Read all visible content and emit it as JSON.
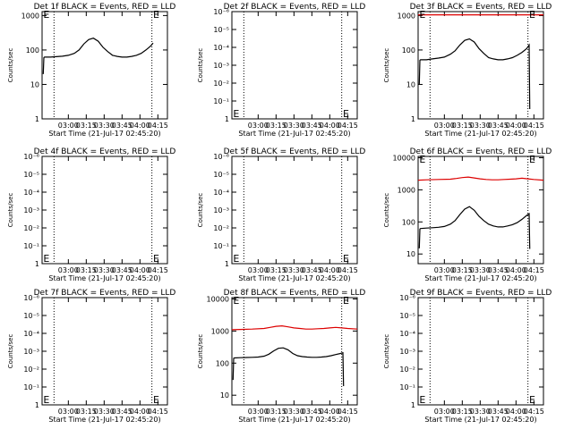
{
  "x_tick_labels": [
    "03:00",
    "03:15",
    "03:30",
    "03:45",
    "04:00",
    "04:15"
  ],
  "x_axis_label": "Start Time (21-Jul-17 02:45:20)",
  "y_axis_label": "Counts/sec",
  "colors": {
    "events": "#000000",
    "lld": "#dd0000"
  },
  "chart_data": [
    {
      "type": "line",
      "title": "Det 1f BLACK = Events, RED = LLD",
      "yscale": "log",
      "y_ticks": [
        1,
        10,
        100,
        1000
      ],
      "ylim": [
        1,
        1300
      ],
      "xlim_minutes": [
        -7,
        98
      ],
      "vlines_minutes": [
        3,
        85
      ],
      "e_markers": [
        {
          "x": -6,
          "y": 1100
        },
        {
          "x": 86,
          "y": 1100
        }
      ],
      "series": [
        {
          "color": "events",
          "x": [
            -6,
            -5.5,
            -5,
            0,
            5,
            10,
            15,
            20,
            24,
            28,
            32,
            36,
            40,
            44,
            48,
            52,
            56,
            60,
            64,
            68,
            72,
            76,
            80,
            84,
            86
          ],
          "y": [
            20,
            60,
            62,
            62,
            64,
            66,
            70,
            80,
            100,
            150,
            200,
            220,
            180,
            120,
            90,
            70,
            65,
            62,
            62,
            65,
            70,
            80,
            100,
            130,
            160
          ]
        }
      ]
    },
    {
      "type": "line",
      "title": "Det 2f BLACK = Events, RED = LLD",
      "yscale": "log",
      "y_ticks": [
        1,
        0.1,
        0.01,
        0.001,
        0.0001,
        1e-05,
        1e-06
      ],
      "ylim": [
        1,
        1e-06
      ],
      "xlim_minutes": [
        -7,
        98
      ],
      "vlines_minutes": [
        3,
        85
      ],
      "e_markers": [
        {
          "x": -6,
          "y": 0.5
        },
        {
          "x": 86,
          "y": 0.5
        }
      ],
      "series": []
    },
    {
      "type": "line",
      "title": "Det 3f BLACK = Events, RED = LLD",
      "yscale": "log",
      "y_ticks": [
        1,
        10,
        100,
        1000
      ],
      "ylim": [
        1,
        1300
      ],
      "xlim_minutes": [
        -7,
        98
      ],
      "vlines_minutes": [
        3,
        85
      ],
      "e_markers": [
        {
          "x": -6,
          "y": 1100
        },
        {
          "x": 86,
          "y": 1100
        }
      ],
      "series": [
        {
          "color": "lld",
          "x": [
            -7,
            98
          ],
          "y": [
            1050,
            1050
          ]
        },
        {
          "color": "events",
          "x": [
            -6,
            -5.5,
            -5,
            0,
            5,
            10,
            15,
            20,
            24,
            28,
            32,
            36,
            40,
            44,
            48,
            52,
            56,
            60,
            64,
            68,
            72,
            76,
            80,
            84,
            86,
            86.5,
            87
          ],
          "y": [
            10,
            50,
            52,
            52,
            55,
            58,
            62,
            75,
            95,
            140,
            190,
            210,
            170,
            110,
            80,
            60,
            55,
            52,
            52,
            55,
            60,
            70,
            85,
            110,
            140,
            2,
            2
          ]
        }
      ]
    },
    {
      "type": "line",
      "title": "Det 4f BLACK = Events, RED = LLD",
      "yscale": "log",
      "y_ticks": [
        1,
        0.1,
        0.01,
        0.001,
        0.0001,
        1e-05,
        1e-06
      ],
      "ylim": [
        1,
        1e-06
      ],
      "xlim_minutes": [
        -7,
        98
      ],
      "vlines_minutes": [
        3,
        85
      ],
      "e_markers": [
        {
          "x": -6,
          "y": 0.5
        },
        {
          "x": 86,
          "y": 0.5
        }
      ],
      "series": []
    },
    {
      "type": "line",
      "title": "Det 5f BLACK = Events, RED = LLD",
      "yscale": "log",
      "y_ticks": [
        1,
        0.1,
        0.01,
        0.001,
        0.0001,
        1e-05,
        1e-06
      ],
      "ylim": [
        1,
        1e-06
      ],
      "xlim_minutes": [
        -7,
        98
      ],
      "vlines_minutes": [
        3,
        85
      ],
      "e_markers": [
        {
          "x": -6,
          "y": 0.5
        },
        {
          "x": 86,
          "y": 0.5
        }
      ],
      "series": []
    },
    {
      "type": "line",
      "title": "Det 6f BLACK = Events, RED = LLD",
      "yscale": "log",
      "y_ticks": [
        10,
        100,
        1000,
        10000
      ],
      "ylim": [
        5,
        11000
      ],
      "xlim_minutes": [
        -7,
        98
      ],
      "vlines_minutes": [
        3,
        85
      ],
      "e_markers": [
        {
          "x": -6,
          "y": 9000
        },
        {
          "x": 86,
          "y": 9000
        }
      ],
      "series": [
        {
          "color": "lld",
          "x": [
            -7,
            0,
            10,
            20,
            25,
            30,
            35,
            40,
            45,
            50,
            55,
            60,
            65,
            70,
            75,
            80,
            85,
            90,
            98
          ],
          "y": [
            2000,
            2050,
            2100,
            2150,
            2250,
            2400,
            2500,
            2350,
            2200,
            2100,
            2050,
            2050,
            2100,
            2150,
            2200,
            2300,
            2200,
            2100,
            2000
          ]
        },
        {
          "color": "events",
          "x": [
            -6,
            -5.5,
            -5,
            0,
            5,
            10,
            15,
            20,
            24,
            28,
            32,
            36,
            40,
            44,
            48,
            52,
            56,
            60,
            64,
            68,
            72,
            76,
            80,
            84,
            86,
            86.5,
            87
          ],
          "y": [
            15,
            60,
            62,
            64,
            66,
            68,
            72,
            85,
            110,
            170,
            250,
            300,
            230,
            150,
            110,
            85,
            75,
            70,
            70,
            75,
            82,
            95,
            120,
            160,
            180,
            15,
            15
          ]
        }
      ]
    },
    {
      "type": "line",
      "title": "Det 7f BLACK = Events, RED = LLD",
      "yscale": "log",
      "y_ticks": [
        1,
        0.1,
        0.01,
        0.001,
        0.0001,
        1e-05,
        1e-06
      ],
      "ylim": [
        1,
        1e-06
      ],
      "xlim_minutes": [
        -7,
        98
      ],
      "vlines_minutes": [
        3,
        85
      ],
      "e_markers": [
        {
          "x": -6,
          "y": 0.5
        },
        {
          "x": 86,
          "y": 0.5
        }
      ],
      "series": []
    },
    {
      "type": "line",
      "title": "Det 8f BLACK = Events, RED = LLD",
      "yscale": "log",
      "y_ticks": [
        10,
        100,
        1000,
        10000
      ],
      "ylim": [
        5,
        11000
      ],
      "xlim_minutes": [
        -7,
        98
      ],
      "vlines_minutes": [
        3,
        85
      ],
      "e_markers": [
        {
          "x": -6,
          "y": 9000
        },
        {
          "x": 86,
          "y": 9000
        }
      ],
      "series": [
        {
          "color": "lld",
          "x": [
            -7,
            0,
            10,
            20,
            25,
            30,
            35,
            40,
            45,
            50,
            55,
            60,
            65,
            70,
            75,
            80,
            85,
            90,
            98
          ],
          "y": [
            1100,
            1120,
            1150,
            1200,
            1300,
            1400,
            1450,
            1350,
            1250,
            1200,
            1150,
            1150,
            1180,
            1200,
            1250,
            1300,
            1250,
            1200,
            1150
          ]
        },
        {
          "color": "events",
          "x": [
            -6,
            -5.5,
            -5,
            0,
            5,
            10,
            15,
            20,
            24,
            28,
            32,
            36,
            40,
            44,
            48,
            52,
            56,
            60,
            64,
            68,
            72,
            76,
            80,
            84,
            86,
            86.5,
            87
          ],
          "y": [
            30,
            140,
            145,
            148,
            150,
            152,
            155,
            165,
            190,
            240,
            290,
            300,
            260,
            200,
            170,
            160,
            155,
            152,
            152,
            155,
            160,
            170,
            185,
            200,
            210,
            20,
            20
          ]
        }
      ]
    },
    {
      "type": "line",
      "title": "Det 9f BLACK = Events, RED = LLD",
      "yscale": "log",
      "y_ticks": [
        1,
        0.1,
        0.01,
        0.001,
        0.0001,
        1e-05,
        1e-06
      ],
      "ylim": [
        1,
        1e-06
      ],
      "xlim_minutes": [
        -7,
        98
      ],
      "vlines_minutes": [
        3,
        85
      ],
      "e_markers": [
        {
          "x": -6,
          "y": 0.5
        },
        {
          "x": 86,
          "y": 0.5
        }
      ],
      "series": []
    }
  ]
}
